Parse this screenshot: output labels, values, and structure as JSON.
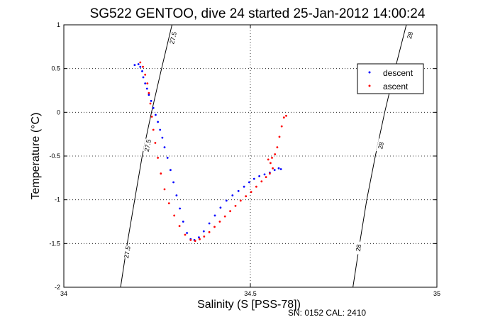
{
  "chart_data": {
    "type": "scatter",
    "title": "SG522 GENTOO, dive 24 started 25-Jan-2012 14:00:24",
    "xlabel": "Salinity (S [PSS-78])",
    "ylabel": "Temperature (°C)",
    "xlim": [
      34,
      35
    ],
    "ylim": [
      -2,
      1
    ],
    "x_ticks": [
      {
        "value": 34,
        "label": "34"
      },
      {
        "value": 34.5,
        "label": "34.5"
      },
      {
        "value": 35,
        "label": "35"
      }
    ],
    "y_ticks": [
      {
        "value": -2,
        "label": "-2"
      },
      {
        "value": -1.5,
        "label": "-1.5"
      },
      {
        "value": -1,
        "label": "-1"
      },
      {
        "value": -0.5,
        "label": "-0.5"
      },
      {
        "value": 0,
        "label": "0"
      },
      {
        "value": 0.5,
        "label": "0.5"
      },
      {
        "value": 1,
        "label": "1"
      }
    ],
    "grid": true,
    "legend_position": "top-right",
    "series": [
      {
        "name": "descent",
        "color": "#0000ff",
        "points": [
          [
            34.19,
            0.54
          ],
          [
            34.2,
            0.55
          ],
          [
            34.205,
            0.52
          ],
          [
            34.21,
            0.47
          ],
          [
            34.213,
            0.4
          ],
          [
            34.218,
            0.33
          ],
          [
            34.223,
            0.27
          ],
          [
            34.228,
            0.2
          ],
          [
            34.234,
            0.13
          ],
          [
            34.24,
            0.05
          ],
          [
            34.246,
            -0.03
          ],
          [
            34.252,
            -0.11
          ],
          [
            34.258,
            -0.2
          ],
          [
            34.264,
            -0.29
          ],
          [
            34.27,
            -0.4
          ],
          [
            34.278,
            -0.52
          ],
          [
            34.286,
            -0.66
          ],
          [
            34.294,
            -0.8
          ],
          [
            34.302,
            -0.95
          ],
          [
            34.311,
            -1.1
          ],
          [
            34.32,
            -1.25
          ],
          [
            34.33,
            -1.38
          ],
          [
            34.34,
            -1.45
          ],
          [
            34.35,
            -1.46
          ],
          [
            34.362,
            -1.43
          ],
          [
            34.375,
            -1.36
          ],
          [
            34.39,
            -1.27
          ],
          [
            34.405,
            -1.18
          ],
          [
            34.42,
            -1.09
          ],
          [
            34.436,
            -1.01
          ],
          [
            34.452,
            -0.95
          ],
          [
            34.468,
            -0.9
          ],
          [
            34.483,
            -0.85
          ],
          [
            34.497,
            -0.8
          ],
          [
            34.51,
            -0.76
          ],
          [
            34.524,
            -0.73
          ],
          [
            34.538,
            -0.71
          ],
          [
            34.552,
            -0.69
          ],
          [
            34.565,
            -0.66
          ],
          [
            34.576,
            -0.64
          ],
          [
            34.582,
            -0.65
          ]
        ]
      },
      {
        "name": "ascent",
        "color": "#ff0000",
        "points": [
          [
            34.205,
            0.57
          ],
          [
            34.212,
            0.52
          ],
          [
            34.218,
            0.43
          ],
          [
            34.224,
            0.33
          ],
          [
            34.228,
            0.22
          ],
          [
            34.232,
            0.1
          ],
          [
            34.236,
            -0.05
          ],
          [
            34.24,
            -0.2
          ],
          [
            34.245,
            -0.35
          ],
          [
            34.252,
            -0.52
          ],
          [
            34.26,
            -0.7
          ],
          [
            34.27,
            -0.88
          ],
          [
            34.282,
            -1.04
          ],
          [
            34.296,
            -1.18
          ],
          [
            34.31,
            -1.3
          ],
          [
            34.325,
            -1.4
          ],
          [
            34.34,
            -1.46
          ],
          [
            34.352,
            -1.47
          ],
          [
            34.364,
            -1.45
          ],
          [
            34.376,
            -1.42
          ],
          [
            34.39,
            -1.37
          ],
          [
            34.404,
            -1.31
          ],
          [
            34.418,
            -1.25
          ],
          [
            34.432,
            -1.19
          ],
          [
            34.446,
            -1.13
          ],
          [
            34.46,
            -1.07
          ],
          [
            34.474,
            -1.01
          ],
          [
            34.488,
            -0.96
          ],
          [
            34.502,
            -0.91
          ],
          [
            34.516,
            -0.85
          ],
          [
            34.53,
            -0.79
          ],
          [
            34.542,
            -0.74
          ],
          [
            34.552,
            -0.7
          ],
          [
            34.56,
            -0.64
          ],
          [
            34.554,
            -0.58
          ],
          [
            34.548,
            -0.54
          ],
          [
            34.558,
            -0.52
          ],
          [
            34.566,
            -0.48
          ],
          [
            34.572,
            -0.4
          ],
          [
            34.578,
            -0.28
          ],
          [
            34.584,
            -0.16
          ],
          [
            34.59,
            -0.06
          ],
          [
            34.596,
            -0.04
          ]
        ]
      }
    ],
    "contours": [
      {
        "label": "27.5",
        "points": [
          [
            34.152,
            -2.0
          ],
          [
            34.17,
            -1.5
          ],
          [
            34.19,
            -1.0
          ],
          [
            34.21,
            -0.5
          ],
          [
            34.235,
            0.0
          ],
          [
            34.262,
            0.5
          ],
          [
            34.29,
            1.0
          ]
        ],
        "label_positions": [
          [
            34.17,
            -1.6
          ],
          [
            34.225,
            -0.38
          ],
          [
            34.293,
            0.85
          ]
        ]
      },
      {
        "label": "28",
        "points": [
          [
            34.775,
            -2.0
          ],
          [
            34.793,
            -1.5
          ],
          [
            34.812,
            -1.0
          ],
          [
            34.835,
            -0.5
          ],
          [
            34.86,
            0.0
          ],
          [
            34.888,
            0.5
          ],
          [
            34.918,
            1.0
          ]
        ],
        "label_positions": [
          [
            34.79,
            -1.55
          ],
          [
            34.85,
            -0.38
          ],
          [
            34.928,
            0.88
          ]
        ]
      }
    ]
  },
  "legend": {
    "descent_label": "descent",
    "ascent_label": "ascent"
  },
  "footer": {
    "text": "SN: 0152  CAL: 2410"
  }
}
